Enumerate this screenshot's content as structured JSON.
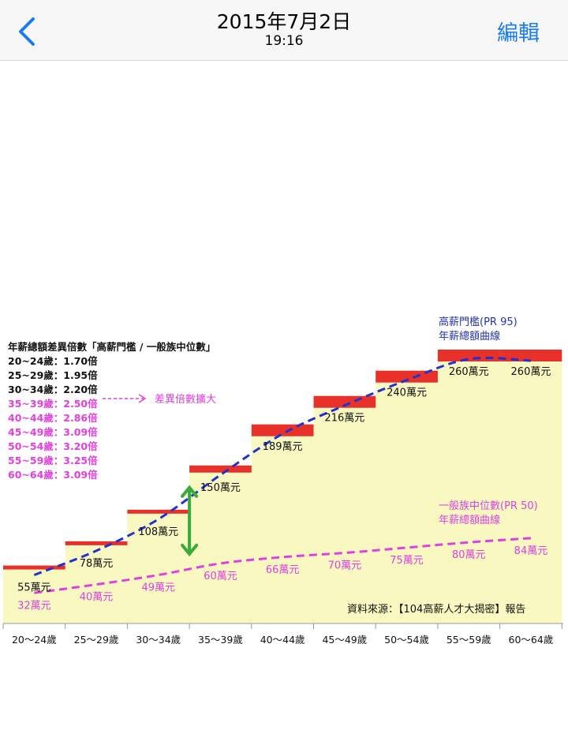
{
  "nav": {
    "date": "2015年7月2日",
    "time": "19:16",
    "edit_label": "編輯",
    "accent_color": "#1a7cf3",
    "back_icon": "chevron-left-icon"
  },
  "chart_data": {
    "type": "bar",
    "categories": [
      "20～24歲",
      "25～29歲",
      "30～34歲",
      "35～39歲",
      "40～44歲",
      "45～49歲",
      "50～54歲",
      "55～59歲",
      "60～64歲"
    ],
    "series": [
      {
        "name": "高薪門檻(PR 95) 年薪總額曲線",
        "values": [
          55,
          78,
          108,
          150,
          189,
          216,
          240,
          260,
          260
        ],
        "labels": [
          "55萬元",
          "78萬元",
          "108萬元",
          "150萬元",
          "189萬元",
          "216萬元",
          "240萬元",
          "260萬元",
          "260萬元"
        ],
        "color": "#e8312a"
      },
      {
        "name": "一般族中位數(PR 50) 年薪總額曲線",
        "values": [
          32,
          40,
          49,
          60,
          66,
          70,
          75,
          80,
          84
        ],
        "labels": [
          "32萬元",
          "40萬元",
          "49萬元",
          "60萬元",
          "66萬元",
          "70萬元",
          "75萬元",
          "80萬元",
          "84萬元"
        ],
        "color": "#e040e0"
      }
    ],
    "series_titles": {
      "high": [
        "高薪門檻(PR 95)",
        "年薪總額曲線"
      ],
      "median": [
        "一般族中位數(PR 50)",
        "年薪總額曲線"
      ]
    },
    "ratio_title": "年薪總額差異倍數「高薪門檻 / 一般族中位數」",
    "ratios": [
      {
        "text": "20~24歲：1.70倍",
        "color": "#111111"
      },
      {
        "text": "25~29歲：1.95倍",
        "color": "#111111"
      },
      {
        "text": "30~34歲：2.20倍",
        "color": "#111111"
      },
      {
        "text": "35~39歲：2.50倍",
        "color": "#e040e0"
      },
      {
        "text": "40~44歲：2.86倍",
        "color": "#e040e0"
      },
      {
        "text": "45~49歲：3.09倍",
        "color": "#e040e0"
      },
      {
        "text": "50~54歲：3.20倍",
        "color": "#e040e0"
      },
      {
        "text": "55~59歲：3.25倍",
        "color": "#e040e0"
      },
      {
        "text": "60~64歲：3.09倍",
        "color": "#e040e0"
      }
    ],
    "gap_note": "差異倍數擴大",
    "source": "資料來源：【104高薪人才大揭密】報告",
    "ylim": [
      0,
      290
    ],
    "colors": {
      "area": "#f8f8c0",
      "high_bar": "#e8312a",
      "high_curve": "#2233cc",
      "median_curve": "#e040e0",
      "arrow": "#3aaa3a",
      "title_blue": "#2233aa"
    }
  }
}
